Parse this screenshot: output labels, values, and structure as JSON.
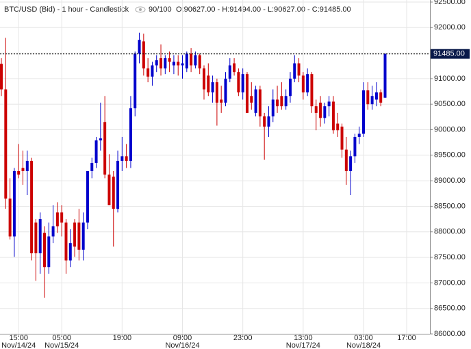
{
  "chart_data": {
    "type": "candlestick",
    "title": "BTC/USD (Bid) - 1 hour - Candlestick",
    "progress": "90/100",
    "ohlc_text": "O:90627.00 - H:91494.00 - L:90627.00 - C:91485.00",
    "up_color": "#0000cc",
    "down_color": "#cc0000",
    "open": [
      91290,
      90790,
      88650,
      87910,
      89190,
      89250,
      89190,
      89390,
      88180,
      87580,
      87980,
      87310,
      87910,
      88380,
      88380,
      88180,
      87440,
      88180,
      88180,
      87650,
      88180,
      89190,
      89350,
      89790,
      90150,
      89120,
      89080,
      88450,
      89390,
      89480,
      89390,
      90420,
      91490,
      91730,
      91200,
      91040,
      91260,
      91400,
      91200,
      91400,
      91260,
      91330,
      91260,
      91200,
      91490,
      91260,
      91460,
      91200,
      91060,
      90730,
      90930,
      90590,
      90530,
      91000,
      91300,
      91130,
      90730,
      91090,
      90660,
      90330,
      90790,
      90260,
      90060,
      90260,
      90590,
      90660,
      90460,
      90660,
      91000,
      91300,
      91060,
      90730,
      91090,
      90460,
      90530,
      90230,
      90460,
      90550,
      90120,
      90060,
      89610,
      89190,
      89480,
      89860,
      89920,
      90770,
      90500,
      90590,
      90730,
      90627
    ],
    "high": [
      91400,
      91800,
      89050,
      89250,
      89720,
      89590,
      89590,
      89450,
      88250,
      88380,
      88110,
      88180,
      88520,
      88580,
      88520,
      88250,
      88050,
      88250,
      88450,
      88380,
      89190,
      89450,
      89860,
      90530,
      90660,
      89520,
      89190,
      89590,
      89860,
      89720,
      90660,
      91530,
      91900,
      91880,
      91400,
      91330,
      91460,
      91670,
      91460,
      91530,
      91460,
      91460,
      91460,
      91530,
      91600,
      91530,
      91490,
      91260,
      91300,
      91060,
      91000,
      90860,
      91130,
      91400,
      91400,
      91200,
      91200,
      91130,
      90930,
      90860,
      90860,
      90330,
      90460,
      90790,
      90860,
      90930,
      90790,
      91130,
      91460,
      91400,
      91130,
      91200,
      91130,
      90590,
      90660,
      90530,
      90660,
      90660,
      90330,
      90120,
      89860,
      89590,
      89920,
      90060,
      90930,
      90930,
      90860,
      90930,
      90790,
      91494
    ],
    "low": [
      90660,
      88450,
      87850,
      87510,
      89050,
      88920,
      88720,
      87440,
      87040,
      87180,
      86710,
      87180,
      87780,
      87980,
      87910,
      87180,
      87310,
      87510,
      87440,
      87440,
      88050,
      89050,
      89250,
      89590,
      89050,
      88520,
      87710,
      88380,
      89190,
      89250,
      89250,
      90260,
      91300,
      91060,
      90930,
      90860,
      91130,
      91060,
      91090,
      91130,
      91090,
      91060,
      91000,
      91130,
      91130,
      91200,
      91090,
      90590,
      90660,
      90530,
      90080,
      90330,
      90460,
      90930,
      91060,
      90660,
      90590,
      90330,
      90390,
      90260,
      90060,
      89410,
      89860,
      90150,
      90330,
      90390,
      90390,
      90530,
      90930,
      90930,
      90590,
      90660,
      90330,
      89990,
      90060,
      90120,
      90260,
      89920,
      89860,
      89450,
      88920,
      88720,
      89350,
      89720,
      89860,
      90390,
      90390,
      90460,
      90460,
      90627
    ],
    "close": [
      90790,
      88650,
      87910,
      89190,
      89120,
      89190,
      89390,
      87580,
      87580,
      88250,
      87310,
      87910,
      88110,
      88110,
      88180,
      87440,
      87780,
      87710,
      87650,
      88180,
      89190,
      89350,
      89790,
      89830,
      89120,
      88520,
      88450,
      89390,
      89480,
      89390,
      90420,
      91490,
      91760,
      91200,
      91040,
      91260,
      91360,
      91200,
      91400,
      91330,
      91330,
      91260,
      91300,
      91490,
      91260,
      91460,
      91200,
      90790,
      90730,
      90930,
      90530,
      90530,
      91000,
      91260,
      91130,
      90730,
      91090,
      90330,
      90530,
      90790,
      90260,
      90060,
      90260,
      90590,
      90460,
      90460,
      90660,
      91000,
      91300,
      91060,
      90730,
      91090,
      90460,
      90330,
      90230,
      90460,
      90550,
      89990,
      89990,
      89610,
      89190,
      89480,
      89860,
      89920,
      90770,
      90500,
      90660,
      90730,
      90530,
      91485
    ],
    "last_price": {
      "value": 91485,
      "label": "91485.00"
    },
    "xlim": [
      -0.32,
      99.4
    ],
    "xticks": [
      {
        "value": 4,
        "label": "15:00"
      },
      {
        "value": 14,
        "label": "05:00"
      },
      {
        "value": 28,
        "label": "19:00"
      },
      {
        "value": 42,
        "label": "09:00"
      },
      {
        "value": 56,
        "label": "23:00"
      },
      {
        "value": 70,
        "label": "13:00"
      },
      {
        "value": 84,
        "label": "03:00"
      },
      {
        "value": 94,
        "label": "17:00"
      }
    ],
    "xtick_dates": [
      "Nov/14/24",
      "Nov/15/24",
      null,
      "Nov/16/24",
      null,
      "Nov/17/24",
      "Nov/18/24",
      null
    ],
    "ylim": [
      86000,
      92540
    ],
    "yticks": [
      {
        "value": 86000,
        "label": "86000.00"
      },
      {
        "value": 86500,
        "label": "86500.00"
      },
      {
        "value": 87000,
        "label": "87000.00"
      },
      {
        "value": 87500,
        "label": "87500.00"
      },
      {
        "value": 88000,
        "label": "88000.00"
      },
      {
        "value": 88500,
        "label": "88500.00"
      },
      {
        "value": 89000,
        "label": "89000.00"
      },
      {
        "value": 89500,
        "label": "89500.00"
      },
      {
        "value": 90000,
        "label": "90000.00"
      },
      {
        "value": 90500,
        "label": "90500.00"
      },
      {
        "value": 91000,
        "label": "91000.00"
      },
      {
        "value": 91500,
        "label": "91500.00"
      },
      {
        "value": 92000,
        "label": "92000.00"
      },
      {
        "value": 92500,
        "label": "92500.00"
      }
    ],
    "grid": true
  }
}
